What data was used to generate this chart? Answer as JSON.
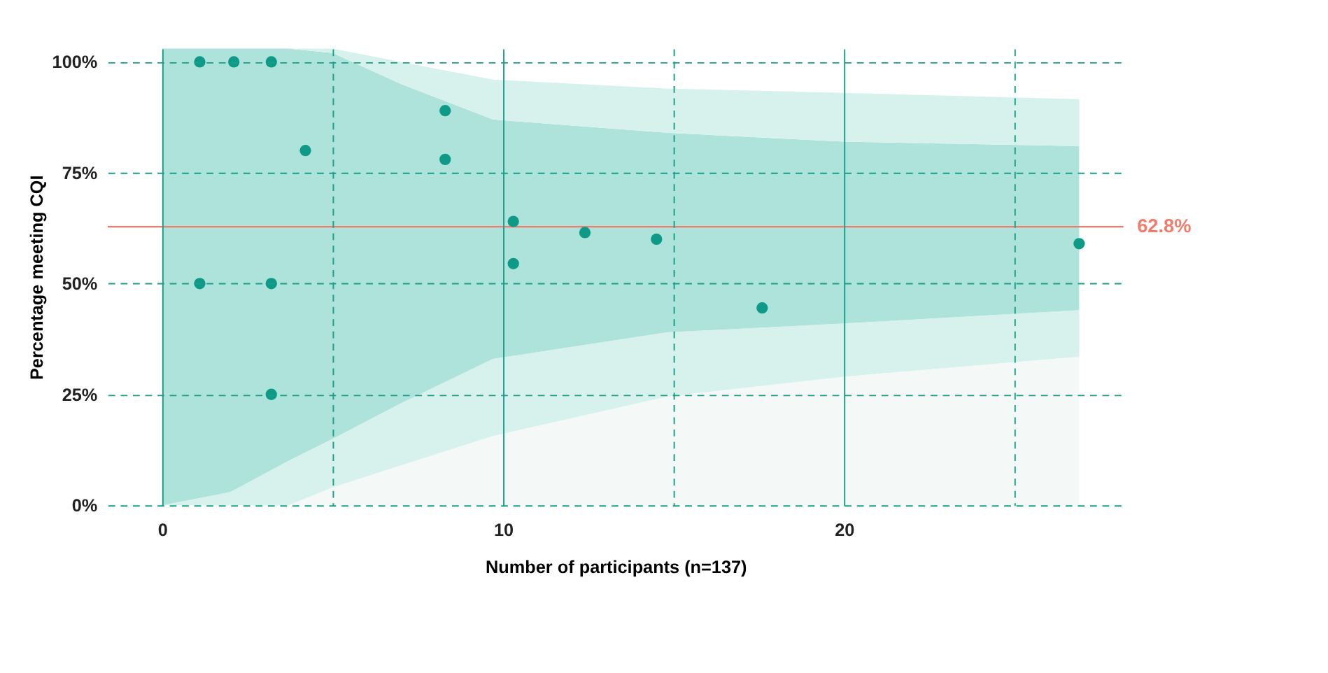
{
  "chart_data": {
    "type": "area",
    "xlabel": "Number of participants (n=137)",
    "ylabel": "Percentage meeting CQI",
    "xlim": [
      -1.6,
      28.2
    ],
    "ylim": [
      0,
      103
    ],
    "xticks": [
      0,
      {
        "value": 5,
        "label": null
      },
      10,
      {
        "value": 15,
        "label": null
      },
      20,
      {
        "value": 25,
        "label": null
      }
    ],
    "yticks": [
      {
        "value": 0,
        "label": "0%"
      },
      {
        "value": 25,
        "label": "25%"
      },
      {
        "value": 50,
        "label": "50%"
      },
      {
        "value": 75,
        "label": "75%"
      },
      {
        "value": 100,
        "label": "100%"
      }
    ],
    "grid": true,
    "stacked": true,
    "ref_lines": [
      {
        "axis": "y",
        "value": 62.8,
        "label": "62.8%",
        "color": "#f07c6c"
      }
    ],
    "series": [
      {
        "color": "#f4f9f8",
        "x": [
          0,
          2,
          3.7,
          5,
          7,
          9.7,
          14.8,
          20,
          26.9
        ],
        "values": [
          0,
          0,
          0,
          4,
          9,
          15.6,
          24.5,
          29,
          33.5
        ]
      },
      {
        "color": "#d7f2ed",
        "x": [
          0,
          2,
          3.7,
          5,
          7,
          9.7,
          14.8,
          20,
          26.9
        ],
        "values": [
          0,
          3,
          10,
          11,
          14,
          17.4,
          14.5,
          12,
          10.5
        ]
      },
      {
        "color": "#ade3da",
        "x": [
          0,
          2,
          3.7,
          5,
          7,
          9.7,
          14.8,
          20,
          26.9
        ],
        "values": [
          103,
          100,
          93,
          87,
          72,
          54,
          45,
          41,
          37
        ]
      },
      {
        "color": "#d7f2ed",
        "x": [
          0,
          2,
          3.7,
          5,
          7,
          9.7,
          14.8,
          20,
          26.9
        ],
        "values": [
          0,
          0,
          0,
          1,
          5,
          9,
          10,
          11,
          10.6
        ]
      },
      {
        "type": "scatter",
        "color": "#0e9a86",
        "marker": "circle",
        "x": [
          1.1,
          2.1,
          3.2,
          1.1,
          3.2,
          3.2,
          4.2,
          8.3,
          8.3,
          10.3,
          10.3,
          12.4,
          14.5,
          17.6,
          26.9
        ],
        "values": [
          100,
          100,
          100,
          50,
          50,
          25,
          80,
          89,
          78,
          64,
          54.5,
          61.5,
          60,
          44.5,
          59
        ]
      }
    ]
  }
}
